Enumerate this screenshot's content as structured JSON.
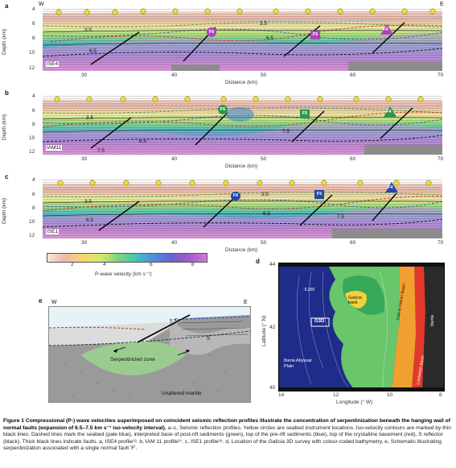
{
  "panels": {
    "a": {
      "letter": "a",
      "profile": "ISE4",
      "faults": [
        "F6",
        "F5",
        "F4"
      ]
    },
    "b": {
      "letter": "b",
      "profile": "IAM11",
      "faults": [
        "F6",
        "F5",
        "F4"
      ]
    },
    "c": {
      "letter": "c",
      "profile": "ISE1",
      "faults": [
        "F6",
        "F5",
        "F4"
      ]
    }
  },
  "compass": {
    "west": "W",
    "east": "E"
  },
  "depth_axis": {
    "title": "Depth (km)",
    "ticks": [
      "4",
      "6",
      "8",
      "10",
      "12"
    ]
  },
  "distance_axis": {
    "title": "Distance (km)",
    "ticks": [
      "30",
      "40",
      "50",
      "60",
      "70"
    ]
  },
  "contour_labels": {
    "c35": "3.5",
    "c65": "6.5",
    "c75": "7.5"
  },
  "colorbar": {
    "title": "P-wave velocity (km s⁻¹)",
    "ticks": [
      "2",
      "4",
      "6",
      "8"
    ]
  },
  "panel_d": {
    "letter": "d",
    "label_g3d": "G3D",
    "labels": [
      "Galicia bank",
      "Galicia Interior Basin",
      "Iberia Abyssal Plain",
      "Iberia",
      "Lusitanian Basin",
      "-5,000"
    ],
    "lat_title": "Latitude (° N)",
    "lat_ticks": [
      "44",
      "42",
      "40"
    ],
    "lon_title": "Longitude (° W)",
    "lon_ticks": [
      "14",
      "12",
      "10",
      "8"
    ]
  },
  "panel_e": {
    "letter": "e",
    "west": "W",
    "east": "E",
    "fault_label": "F",
    "s_label": "S",
    "serpentinized": "Serpentinized zone",
    "mantle": "Unaltered mantle"
  },
  "caption": {
    "fig": "Figure 1",
    "title": "Compressional (P-) wave velocities superimposed on coincident seismic reflection profiles illustrate the concentration of serpentinization beneath the hanging wall of normal faults (expansion of 6.5–7.5 km s⁻¹ iso-velocity interval).",
    "body": "a–c, Seismic reflection profiles. Yellow circles are seabed instrument locations. Iso-velocity contours are marked by thin black lines. Dashed lines mark the seabed (pale blue), interpreted base of post-rift sediments (green), top of the pre-rift sediments (blue), top of the crystalline basement (red), S reflector (black). Thick black lines indicate faults. a, ISE4 profile¹³. b, IAM 11 profile²⁷. c, ISE1 profile²⁸. d, Location of the Galicia 3D survey with colour-coded bathymetry. e, Schematic illustrating serpentinization associated with a single normal fault 'F'."
  }
}
